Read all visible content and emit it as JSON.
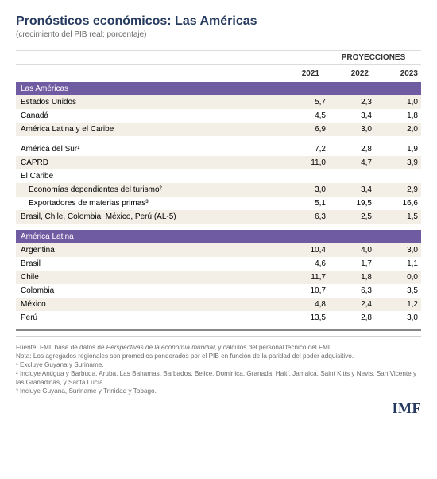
{
  "title": "Pronósticos económicos: Las Américas",
  "subtitle": "(crecimiento del PIB real; porcentaje)",
  "projections_label": "PROYECCIONES",
  "years": [
    "2021",
    "2022",
    "2023"
  ],
  "sections": [
    {
      "header": "Las Américas",
      "rows": [
        {
          "label": "Estados Unidos",
          "indent": false,
          "alt": true,
          "values": [
            "5,7",
            "2,3",
            "1,0"
          ]
        },
        {
          "label": "Canadá",
          "indent": false,
          "alt": false,
          "values": [
            "4,5",
            "3,4",
            "1,8"
          ]
        },
        {
          "label": "América Latina y el Caribe",
          "indent": false,
          "alt": true,
          "values": [
            "6,9",
            "3,0",
            "2,0"
          ]
        },
        {
          "spacer": true
        },
        {
          "label": "América del Sur¹",
          "indent": false,
          "alt": false,
          "values": [
            "7,2",
            "2,8",
            "1,9"
          ]
        },
        {
          "label": "CAPRD",
          "indent": false,
          "alt": true,
          "values": [
            "11,0",
            "4,7",
            "3,9"
          ]
        },
        {
          "label": "El Caribe",
          "indent": false,
          "alt": false,
          "values": [
            "",
            "",
            ""
          ]
        },
        {
          "label": "Economías dependientes del turismo²",
          "indent": true,
          "alt": true,
          "values": [
            "3,0",
            "3,4",
            "2,9"
          ]
        },
        {
          "label": "Exportadores de materias primas³",
          "indent": true,
          "alt": false,
          "values": [
            "5,1",
            "19,5",
            "16,6"
          ]
        },
        {
          "label": "Brasil, Chile, Colombia, México, Perú (AL-5)",
          "indent": false,
          "alt": true,
          "values": [
            "6,3",
            "2,5",
            "1,5"
          ]
        },
        {
          "spacer": true
        }
      ]
    },
    {
      "header": "América Latina",
      "rows": [
        {
          "label": "Argentina",
          "indent": false,
          "alt": true,
          "values": [
            "10,4",
            "4,0",
            "3,0"
          ]
        },
        {
          "label": "Brasil",
          "indent": false,
          "alt": false,
          "values": [
            "4,6",
            "1,7",
            "1,1"
          ]
        },
        {
          "label": "Chile",
          "indent": false,
          "alt": true,
          "values": [
            "11,7",
            "1,8",
            "0,0"
          ]
        },
        {
          "label": "Colombia",
          "indent": false,
          "alt": false,
          "values": [
            "10,7",
            "6,3",
            "3,5"
          ]
        },
        {
          "label": "México",
          "indent": false,
          "alt": true,
          "values": [
            "4,8",
            "2,4",
            "1,2"
          ]
        },
        {
          "label": "Perú",
          "indent": false,
          "alt": false,
          "values": [
            "13,5",
            "2,8",
            "3,0"
          ]
        }
      ]
    }
  ],
  "notes": {
    "line1_pre": "Fuente: FMI, base de datos de ",
    "line1_italic": "Perspectivas de la economía mundial",
    "line1_post": ", y cálculos del personal técnico del FMI.",
    "line2": "Nota: Los agregados regionales son promedios ponderados por el PIB en función de la paridad del poder adquisitivo.",
    "fn1": "¹ Excluye Guyana y Suriname.",
    "fn2": "² Incluye Antigua y Barbuda, Aruba, Las Bahamas, Barbados, Belice, Dominica, Granada, Haití, Jamaica, Saint Kitts y Nevis, San Vicente y las Granadinas, y Santa Lucía.",
    "fn3": "³ Incluye Guyana, Suriname y Trinidad y Tobago."
  },
  "logo": "IMF",
  "colors": {
    "title": "#253a5e",
    "section_bg": "#6f5ba1",
    "alt_bg": "#f3efe6",
    "grid": "#dcdcdc",
    "notes": "#6a6a6a"
  }
}
